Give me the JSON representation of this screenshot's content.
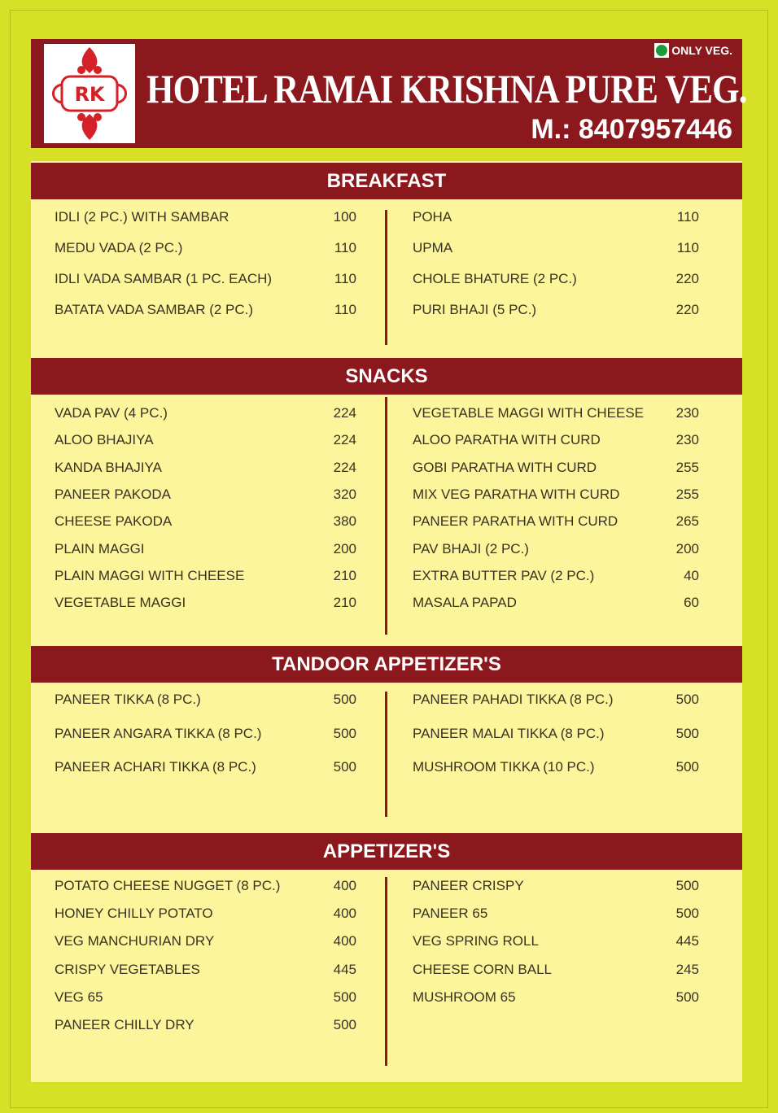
{
  "header": {
    "logo_text": "RK",
    "title": "HOTEL RAMAI KRISHNA PURE VEG.",
    "veg_badge": "ONLY VEG.",
    "phone": "M.: 8407957446",
    "colors": {
      "brand": "#8a181c",
      "background": "#d6e027",
      "panel": "#fdf59b",
      "veg": "#1e9a3a"
    }
  },
  "sections": [
    {
      "title": "BREAKFAST",
      "left": [
        [
          "IDLI (2 PC.) WITH SAMBAR",
          "100"
        ],
        [
          "MEDU VADA (2 PC.)",
          "110"
        ],
        [
          "IDLI VADA SAMBAR (1 PC. EACH)",
          "110"
        ],
        [
          "BATATA VADA SAMBAR (2 PC.)",
          "110"
        ]
      ],
      "right": [
        [
          "POHA",
          "110"
        ],
        [
          "UPMA",
          "110"
        ],
        [
          "CHOLE BHATURE (2 PC.)",
          "220"
        ],
        [
          "PURI BHAJI (5 PC.)",
          "220"
        ]
      ]
    },
    {
      "title": "SNACKS",
      "left": [
        [
          "VADA PAV (4 PC.)",
          "224"
        ],
        [
          "ALOO BHAJIYA",
          "224"
        ],
        [
          "KANDA BHAJIYA",
          "224"
        ],
        [
          "PANEER PAKODA",
          "320"
        ],
        [
          "CHEESE PAKODA",
          "380"
        ],
        [
          "PLAIN MAGGI",
          "200"
        ],
        [
          "PLAIN MAGGI WITH CHEESE",
          "210"
        ],
        [
          "VEGETABLE MAGGI",
          "210"
        ]
      ],
      "right": [
        [
          "VEGETABLE MAGGI WITH CHEESE",
          "230"
        ],
        [
          "ALOO PARATHA WITH CURD",
          "230"
        ],
        [
          "GOBI PARATHA WITH CURD",
          "255"
        ],
        [
          "MIX VEG PARATHA WITH CURD",
          "255"
        ],
        [
          "PANEER PARATHA WITH CURD",
          "265"
        ],
        [
          "PAV BHAJI (2 PC.)",
          "200"
        ],
        [
          "EXTRA BUTTER PAV (2 PC.)",
          "40"
        ],
        [
          "MASALA PAPAD",
          "60"
        ]
      ]
    },
    {
      "title": "TANDOOR APPETIZER'S",
      "left": [
        [
          "PANEER TIKKA (8 PC.)",
          "500"
        ],
        [
          "PANEER ANGARA TIKKA (8 PC.)",
          "500"
        ],
        [
          "PANEER ACHARI TIKKA (8 PC.)",
          "500"
        ]
      ],
      "right": [
        [
          "PANEER PAHADI TIKKA (8 PC.)",
          "500"
        ],
        [
          "PANEER MALAI TIKKA (8 PC.)",
          "500"
        ],
        [
          "MUSHROOM TIKKA (10 PC.)",
          "500"
        ]
      ]
    },
    {
      "title": "APPETIZER'S",
      "left": [
        [
          "POTATO CHEESE NUGGET (8 PC.)",
          "400"
        ],
        [
          "HONEY CHILLY POTATO",
          "400"
        ],
        [
          "VEG MANCHURIAN DRY",
          "400"
        ],
        [
          "CRISPY VEGETABLES",
          "445"
        ],
        [
          "VEG 65",
          "500"
        ],
        [
          "PANEER CHILLY DRY",
          "500"
        ]
      ],
      "right": [
        [
          "PANEER CRISPY",
          "500"
        ],
        [
          "PANEER 65",
          "500"
        ],
        [
          "VEG SPRING ROLL",
          "445"
        ],
        [
          "CHEESE CORN BALL",
          "245"
        ],
        [
          "MUSHROOM 65",
          "500"
        ]
      ]
    }
  ]
}
